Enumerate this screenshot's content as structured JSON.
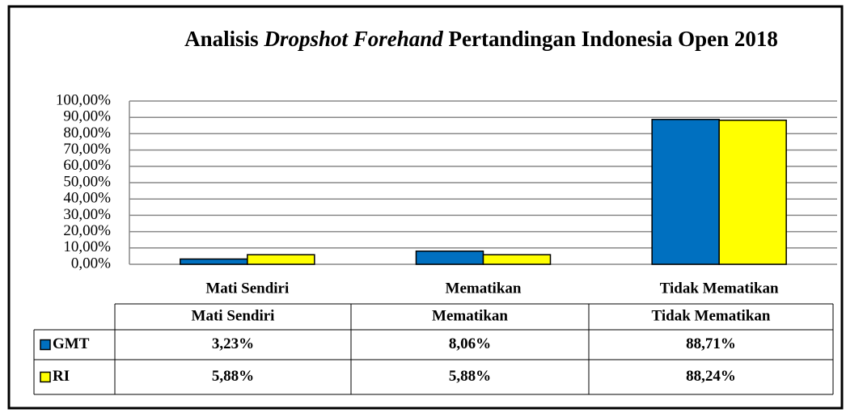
{
  "chart_data": {
    "type": "bar",
    "title_parts": [
      "Analisis ",
      "Dropshot Forehand",
      " Pertandingan Indonesia Open 2018"
    ],
    "categories": [
      "Mati Sendiri",
      "Mematikan",
      "Tidak Mematikan"
    ],
    "series": [
      {
        "name": "GMT",
        "color": "#0070c0",
        "values": [
          3.23,
          8.06,
          88.71
        ],
        "value_labels": [
          "3,23%",
          "8,06%",
          "88,71%"
        ]
      },
      {
        "name": "RI",
        "color": "#ffff00",
        "values": [
          5.88,
          5.88,
          88.24
        ],
        "value_labels": [
          "5,88%",
          "5,88%",
          "88,24%"
        ]
      }
    ],
    "ylim": [
      0,
      100
    ],
    "yticks": [
      {
        "value": 0,
        "label": "0,00%"
      },
      {
        "value": 10,
        "label": "10,00%"
      },
      {
        "value": 20,
        "label": "20,00%"
      },
      {
        "value": 30,
        "label": "30,00%"
      },
      {
        "value": 40,
        "label": "40,00%"
      },
      {
        "value": 50,
        "label": "50,00%"
      },
      {
        "value": 60,
        "label": "60,00%"
      },
      {
        "value": 70,
        "label": "70,00%"
      },
      {
        "value": 80,
        "label": "80,00%"
      },
      {
        "value": 90,
        "label": "90,00%"
      },
      {
        "value": 100,
        "label": "100,00%"
      }
    ],
    "grid": true
  }
}
